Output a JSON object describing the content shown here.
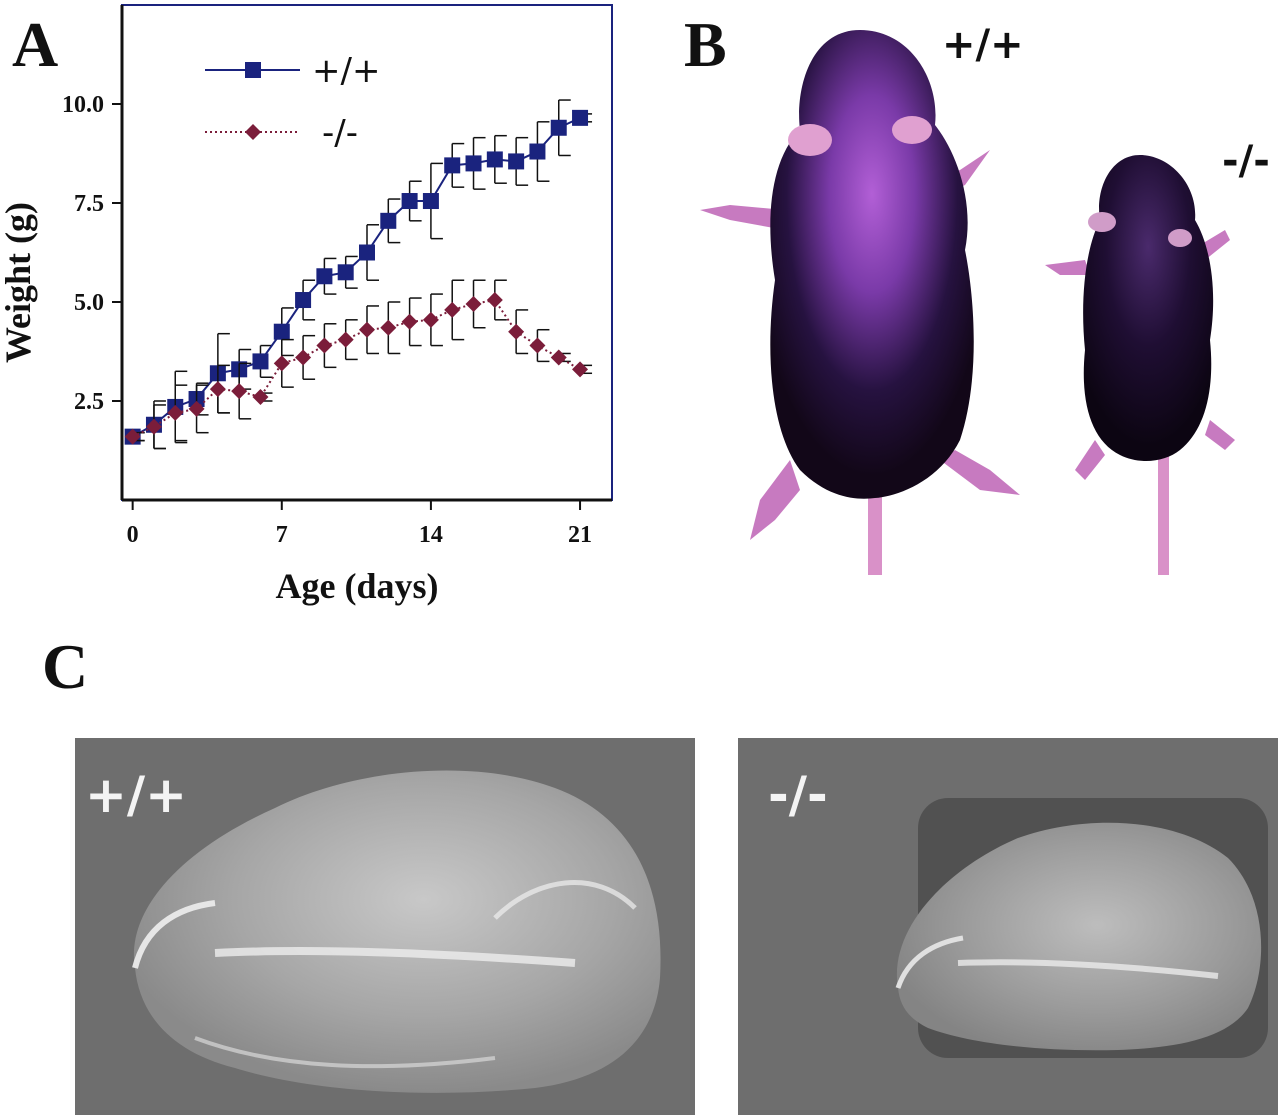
{
  "panels": {
    "a": {
      "letter": "A"
    },
    "b": {
      "letter": "B",
      "label_wt": "+/+",
      "label_ko": "-/-"
    },
    "c": {
      "letter": "C",
      "label_wt": "+/+",
      "label_ko": "-/-"
    }
  },
  "chart_data": {
    "type": "line",
    "title": "",
    "xlabel": "Age (days)",
    "ylabel": "Weight (g)",
    "xlim": [
      -0.5,
      22.5
    ],
    "ylim": [
      0,
      12.5
    ],
    "xticks": [
      0,
      7,
      14,
      21
    ],
    "xtick_labels": [
      "0",
      "7",
      "14",
      "21"
    ],
    "yticks": [
      2.5,
      5.0,
      7.5,
      10.0
    ],
    "ytick_labels": [
      "2.5",
      "5.0",
      "7.5",
      "10.0"
    ],
    "grid": false,
    "legend_position": "top-left",
    "error_bars": "upper and lower caps",
    "series": [
      {
        "name": "+/+",
        "color": "#1a237e",
        "marker": "square",
        "line_style": "solid",
        "x": [
          0,
          1,
          2,
          3,
          4,
          5,
          6,
          7,
          8,
          9,
          10,
          11,
          12,
          13,
          14,
          15,
          16,
          17,
          18,
          19,
          20,
          21
        ],
        "y": [
          1.6,
          1.9,
          2.35,
          2.55,
          3.2,
          3.3,
          3.5,
          4.25,
          5.05,
          5.65,
          5.75,
          6.25,
          7.05,
          7.55,
          7.55,
          8.45,
          8.5,
          8.6,
          8.55,
          8.8,
          9.4,
          9.65
        ],
        "error": [
          0.1,
          0.6,
          0.9,
          0.4,
          1.0,
          0.5,
          0.4,
          0.6,
          0.5,
          0.45,
          0.4,
          0.7,
          0.55,
          0.5,
          0.95,
          0.55,
          0.65,
          0.6,
          0.6,
          0.75,
          0.7,
          0.1
        ]
      },
      {
        "name": "-/-",
        "color": "#7b1d3a",
        "marker": "diamond",
        "line_style": "dotted",
        "x": [
          0,
          1,
          2,
          3,
          4,
          5,
          6,
          7,
          8,
          9,
          10,
          11,
          12,
          13,
          14,
          15,
          16,
          17,
          18,
          19,
          20,
          21
        ],
        "y": [
          1.6,
          1.85,
          2.2,
          2.3,
          2.8,
          2.75,
          2.6,
          3.45,
          3.6,
          3.9,
          4.05,
          4.3,
          4.35,
          4.5,
          4.55,
          4.8,
          4.95,
          5.05,
          4.25,
          3.9,
          3.6,
          3.3
        ],
        "error": [
          0.1,
          0.55,
          0.7,
          0.6,
          0.6,
          0.7,
          0.1,
          0.6,
          0.55,
          0.55,
          0.5,
          0.6,
          0.65,
          0.6,
          0.65,
          0.75,
          0.6,
          0.5,
          0.55,
          0.4,
          0.1,
          0.1
        ]
      }
    ]
  }
}
